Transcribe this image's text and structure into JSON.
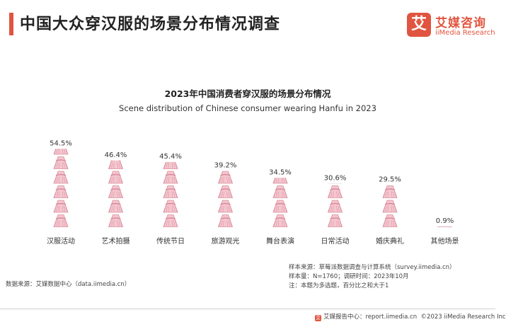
{
  "header": {
    "title": "中国大众穿汉服的场景分布情况调查",
    "logo_mark": "艾",
    "logo_cn": "艾媒咨询",
    "logo_en": "iiMedia Research"
  },
  "colors": {
    "accent": "#e1543f",
    "icon_fill": "#f4c6cf",
    "icon_stroke": "#d98a99",
    "label": "#333333"
  },
  "chart_data": {
    "type": "bar",
    "title": "2023年中国消费者穿汉服的场景分布情况",
    "subtitle": "Scene distribution of Chinese consumer wearing Hanfu in 2023",
    "categories": [
      "汉服活动",
      "艺术拍摄",
      "传统节日",
      "旅游观光",
      "舞台表演",
      "日常活动",
      "婚庆典礼",
      "其他场景"
    ],
    "values": [
      54.5,
      46.4,
      45.4,
      39.2,
      34.5,
      30.6,
      29.5,
      0.9
    ],
    "value_labels": [
      "54.5%",
      "46.4%",
      "45.4%",
      "39.2%",
      "34.5%",
      "30.6%",
      "29.5%",
      "0.9%"
    ],
    "unit": "%",
    "icon": "hanfu-dress-icon",
    "icon_stack_units": 6,
    "ylim": [
      0,
      60
    ],
    "grid": false,
    "legend": "none"
  },
  "footer": {
    "source": "数据来源：艾媒数据中心（data.iimedia.cn）",
    "notes": [
      "样本来源：草莓派数据调查与计算系统（survey.iimedia.cn）",
      "样本量：N=1760；调研时间：2023年10月",
      "注：本题为多选题，百分比之和大于1"
    ],
    "report": "艾媒报告中心：report.iimedia.cn",
    "copyright": "©2023  iiMedia Research  Inc"
  }
}
